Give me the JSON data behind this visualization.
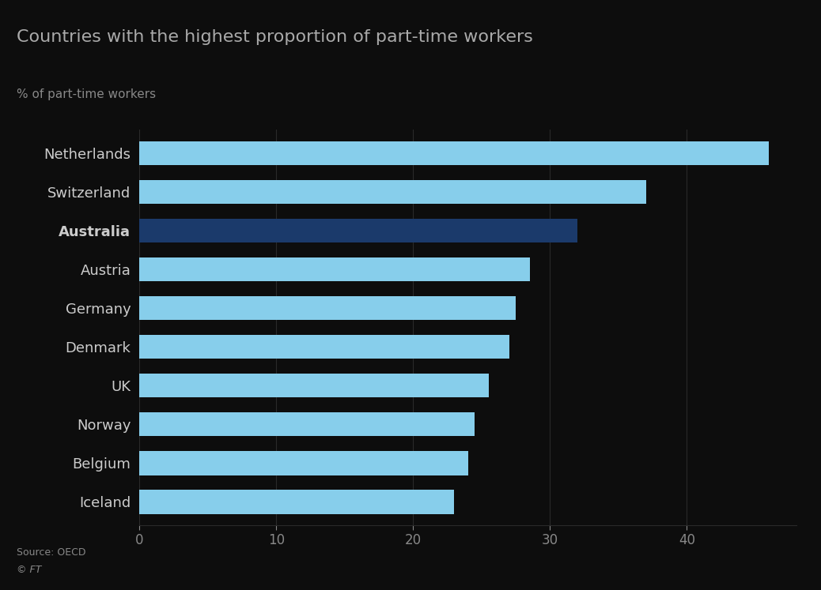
{
  "title": "Countries with the highest proportion of part-time workers",
  "subtitle": "% of part-time workers",
  "source": "Source: OECD",
  "copyright": "© FT",
  "categories": [
    "Netherlands",
    "Switzerland",
    "Australia",
    "Austria",
    "Germany",
    "Denmark",
    "UK",
    "Norway",
    "Belgium",
    "Iceland"
  ],
  "values": [
    46.0,
    37.0,
    32.0,
    28.5,
    27.5,
    27.0,
    25.5,
    24.5,
    24.0,
    23.0
  ],
  "bar_colors": [
    "#87CEEB",
    "#87CEEB",
    "#1B3A6B",
    "#87CEEB",
    "#87CEEB",
    "#87CEEB",
    "#87CEEB",
    "#87CEEB",
    "#87CEEB",
    "#87CEEB"
  ],
  "highlight_index": 2,
  "light_blue": "#87CEEB",
  "dark_blue": "#1B3A6B",
  "background_color": "#0d0d0d",
  "text_color": "#cccccc",
  "title_color": "#aaaaaa",
  "axis_label_color": "#888888",
  "xlim": [
    0,
    48
  ],
  "xticks": [
    0,
    10,
    20,
    30,
    40
  ],
  "grid_color": "#2a2a2a",
  "bar_height": 0.62,
  "figsize": [
    10.38,
    7.47
  ],
  "dpi": 100,
  "title_fontsize": 16,
  "subtitle_fontsize": 11,
  "yticklabel_fontsize": 13,
  "xticklabel_fontsize": 12,
  "source_fontsize": 9
}
